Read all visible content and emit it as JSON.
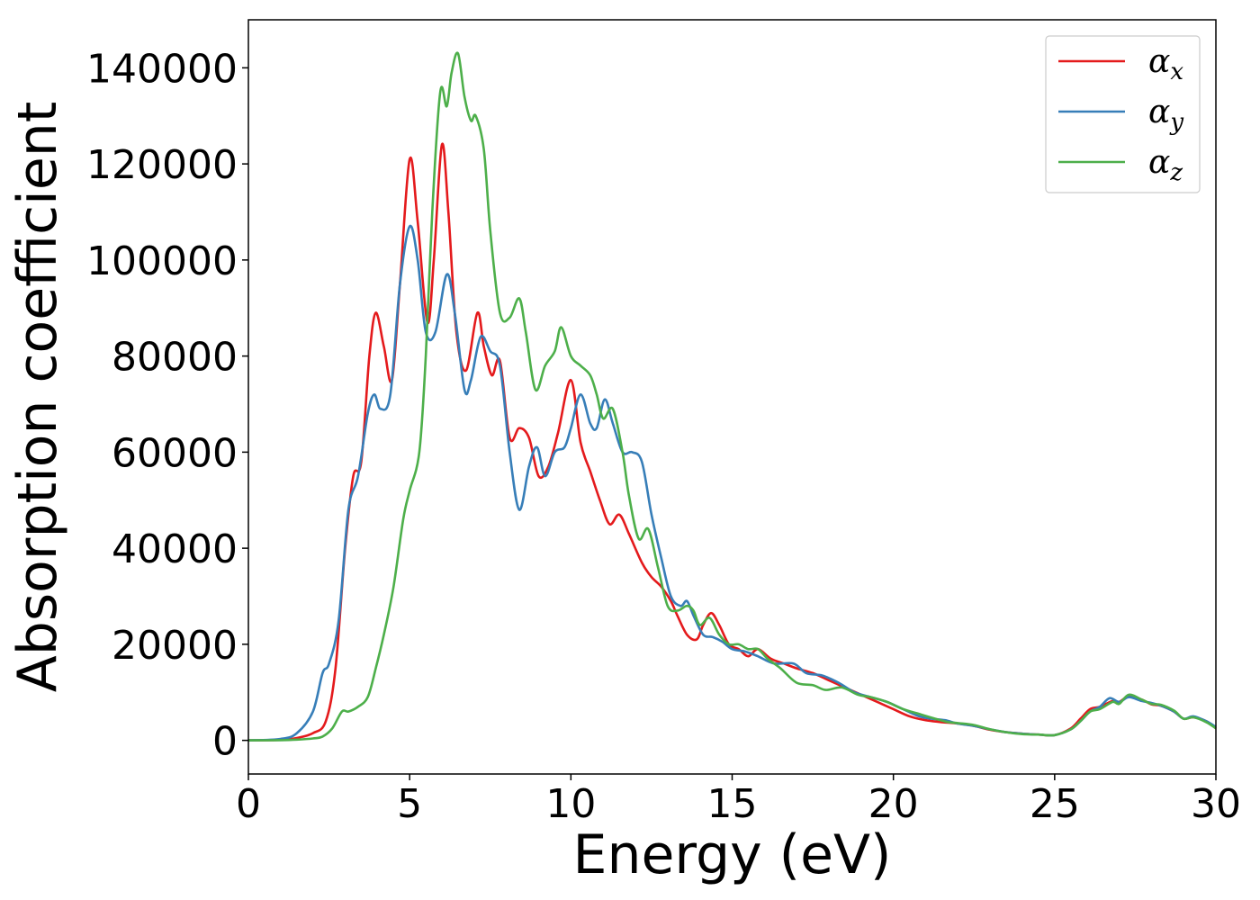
{
  "chart_data": {
    "type": "line",
    "xlabel": "Energy (eV)",
    "ylabel": "Absorption coefficient",
    "xlim": [
      0,
      30
    ],
    "ylim": [
      -7000,
      150000
    ],
    "xticks": [
      0,
      5,
      10,
      15,
      20,
      25,
      30
    ],
    "yticks": [
      0,
      20000,
      40000,
      60000,
      80000,
      100000,
      120000,
      140000
    ],
    "grid": false,
    "legend_position": "top-right",
    "series": [
      {
        "name": "α_x",
        "label_base": "α",
        "label_sub": "x",
        "color": "#e41a1c",
        "x": [
          0,
          1,
          1.5,
          2,
          2.4,
          2.7,
          3,
          3.25,
          3.5,
          3.75,
          3.95,
          4.2,
          4.45,
          4.7,
          5.0,
          5.25,
          5.55,
          5.75,
          6.0,
          6.2,
          6.45,
          6.75,
          7.1,
          7.3,
          7.55,
          7.8,
          8.1,
          8.4,
          8.7,
          9.0,
          9.3,
          9.6,
          10.0,
          10.3,
          10.6,
          10.9,
          11.2,
          11.5,
          11.8,
          12.2,
          12.5,
          12.8,
          13.1,
          13.3,
          13.6,
          13.9,
          14.1,
          14.35,
          14.6,
          14.9,
          15.2,
          15.5,
          15.8,
          16.2,
          16.6,
          17.0,
          17.5,
          18.0,
          18.5,
          19.0,
          19.5,
          20.0,
          20.5,
          21.0,
          21.5,
          22.0,
          22.5,
          23.0,
          23.5,
          24.0,
          24.5,
          25.0,
          25.5,
          25.8,
          26.1,
          26.4,
          26.8,
          27.0,
          27.3,
          27.7,
          28.0,
          28.3,
          28.7,
          29.0,
          29.3,
          29.7,
          30.0
        ],
        "y": [
          0,
          100,
          500,
          1500,
          4000,
          15000,
          40000,
          55000,
          58000,
          80000,
          89000,
          82000,
          75000,
          95000,
          121000,
          108000,
          87000,
          100000,
          124000,
          110000,
          85000,
          77000,
          89000,
          82000,
          76000,
          79000,
          63000,
          65000,
          63000,
          55000,
          57000,
          64000,
          75000,
          62000,
          56000,
          50000,
          45000,
          47000,
          43000,
          37000,
          34000,
          32000,
          29000,
          26000,
          22000,
          21000,
          24000,
          26500,
          24000,
          20000,
          19000,
          17500,
          19000,
          17000,
          16000,
          15000,
          14000,
          12500,
          11000,
          9500,
          8000,
          6500,
          5000,
          4200,
          3800,
          3500,
          3000,
          2200,
          1700,
          1400,
          1200,
          1100,
          2500,
          4500,
          6500,
          7000,
          8200,
          8000,
          9200,
          8500,
          7500,
          7200,
          6000,
          4500,
          4800,
          4000,
          2500
        ]
      },
      {
        "name": "α_y",
        "label_base": "α",
        "label_sub": "y",
        "color": "#377eb8",
        "x": [
          0,
          1,
          1.5,
          2,
          2.3,
          2.5,
          2.8,
          3.1,
          3.4,
          3.7,
          3.9,
          4.1,
          4.4,
          4.7,
          5.0,
          5.25,
          5.5,
          5.8,
          6.15,
          6.4,
          6.7,
          6.9,
          7.2,
          7.5,
          7.8,
          8.1,
          8.4,
          8.7,
          8.95,
          9.2,
          9.5,
          9.8,
          10.0,
          10.3,
          10.6,
          10.8,
          11.05,
          11.3,
          11.6,
          11.9,
          12.2,
          12.5,
          12.8,
          13.1,
          13.4,
          13.6,
          13.8,
          14.1,
          14.4,
          14.7,
          15.0,
          15.4,
          15.8,
          16.3,
          16.9,
          17.3,
          17.8,
          18.3,
          18.8,
          19.3,
          19.8,
          20.3,
          20.8,
          21.2,
          21.6,
          22.0,
          22.5,
          23.0,
          23.5,
          24.0,
          24.5,
          25.0,
          25.5,
          25.8,
          26.1,
          26.4,
          26.7,
          27.0,
          27.3,
          27.7,
          28.0,
          28.3,
          28.7,
          29.0,
          29.3,
          29.7,
          30.0
        ],
        "y": [
          0,
          300,
          1500,
          6000,
          14000,
          16000,
          25000,
          48000,
          55000,
          68000,
          72000,
          69000,
          72000,
          95000,
          107000,
          100000,
          85000,
          85000,
          97000,
          89000,
          73000,
          75000,
          84000,
          81000,
          78000,
          60000,
          48000,
          57000,
          61000,
          55000,
          60000,
          61000,
          65000,
          72000,
          66000,
          65000,
          71000,
          66000,
          60000,
          60000,
          58000,
          47000,
          38000,
          30000,
          28000,
          29000,
          26000,
          22000,
          21500,
          20500,
          19000,
          18500,
          17500,
          16000,
          16000,
          14000,
          13500,
          12000,
          10000,
          9000,
          8000,
          6500,
          5000,
          4500,
          4200,
          3500,
          3000,
          2300,
          1700,
          1400,
          1200,
          1100,
          2300,
          4000,
          6000,
          7000,
          8800,
          8000,
          9000,
          8200,
          7800,
          7200,
          6000,
          4500,
          5000,
          4000,
          2800
        ]
      },
      {
        "name": "α_z",
        "label_base": "α",
        "label_sub": "z",
        "color": "#4daf4a",
        "x": [
          0,
          1,
          1.5,
          2.0,
          2.3,
          2.6,
          2.9,
          3.1,
          3.4,
          3.7,
          3.95,
          4.2,
          4.5,
          4.8,
          5.0,
          5.3,
          5.5,
          5.7,
          5.95,
          6.15,
          6.3,
          6.5,
          6.7,
          6.9,
          7.05,
          7.3,
          7.5,
          7.8,
          8.1,
          8.4,
          8.6,
          8.9,
          9.2,
          9.5,
          9.7,
          10.0,
          10.3,
          10.6,
          10.8,
          11.0,
          11.3,
          11.6,
          11.8,
          12.1,
          12.4,
          12.7,
          13.0,
          13.3,
          13.6,
          13.8,
          14.0,
          14.3,
          14.6,
          14.9,
          15.2,
          15.5,
          15.8,
          16.1,
          16.5,
          17.0,
          17.5,
          17.9,
          18.4,
          18.9,
          19.3,
          19.8,
          20.3,
          20.8,
          21.3,
          21.7,
          22.0,
          22.5,
          23.0,
          23.5,
          24.0,
          24.5,
          25.0,
          25.5,
          25.8,
          26.1,
          26.4,
          26.8,
          27.0,
          27.3,
          27.7,
          28.0,
          28.3,
          28.7,
          29.0,
          29.3,
          29.7,
          30.0
        ],
        "y": [
          0,
          50,
          150,
          400,
          800,
          2500,
          6000,
          6000,
          7000,
          9000,
          15000,
          22000,
          32000,
          46000,
          52000,
          60000,
          80000,
          110000,
          135000,
          132000,
          139000,
          143000,
          134000,
          129000,
          130000,
          123000,
          106000,
          89000,
          88000,
          92000,
          85000,
          73000,
          78000,
          81000,
          86000,
          80000,
          78000,
          76000,
          72000,
          67000,
          69000,
          60000,
          51000,
          42000,
          44000,
          36000,
          28000,
          27000,
          28000,
          27000,
          24000,
          25500,
          22000,
          20000,
          20000,
          19000,
          19000,
          17000,
          15000,
          12000,
          11500,
          10500,
          11000,
          9500,
          9000,
          8000,
          6500,
          5500,
          4500,
          3800,
          3600,
          3200,
          2300,
          1700,
          1300,
          1200,
          1100,
          2300,
          4000,
          6000,
          6500,
          8000,
          7600,
          9500,
          8500,
          7600,
          7400,
          6200,
          4500,
          4800,
          3800,
          2500
        ]
      }
    ]
  }
}
